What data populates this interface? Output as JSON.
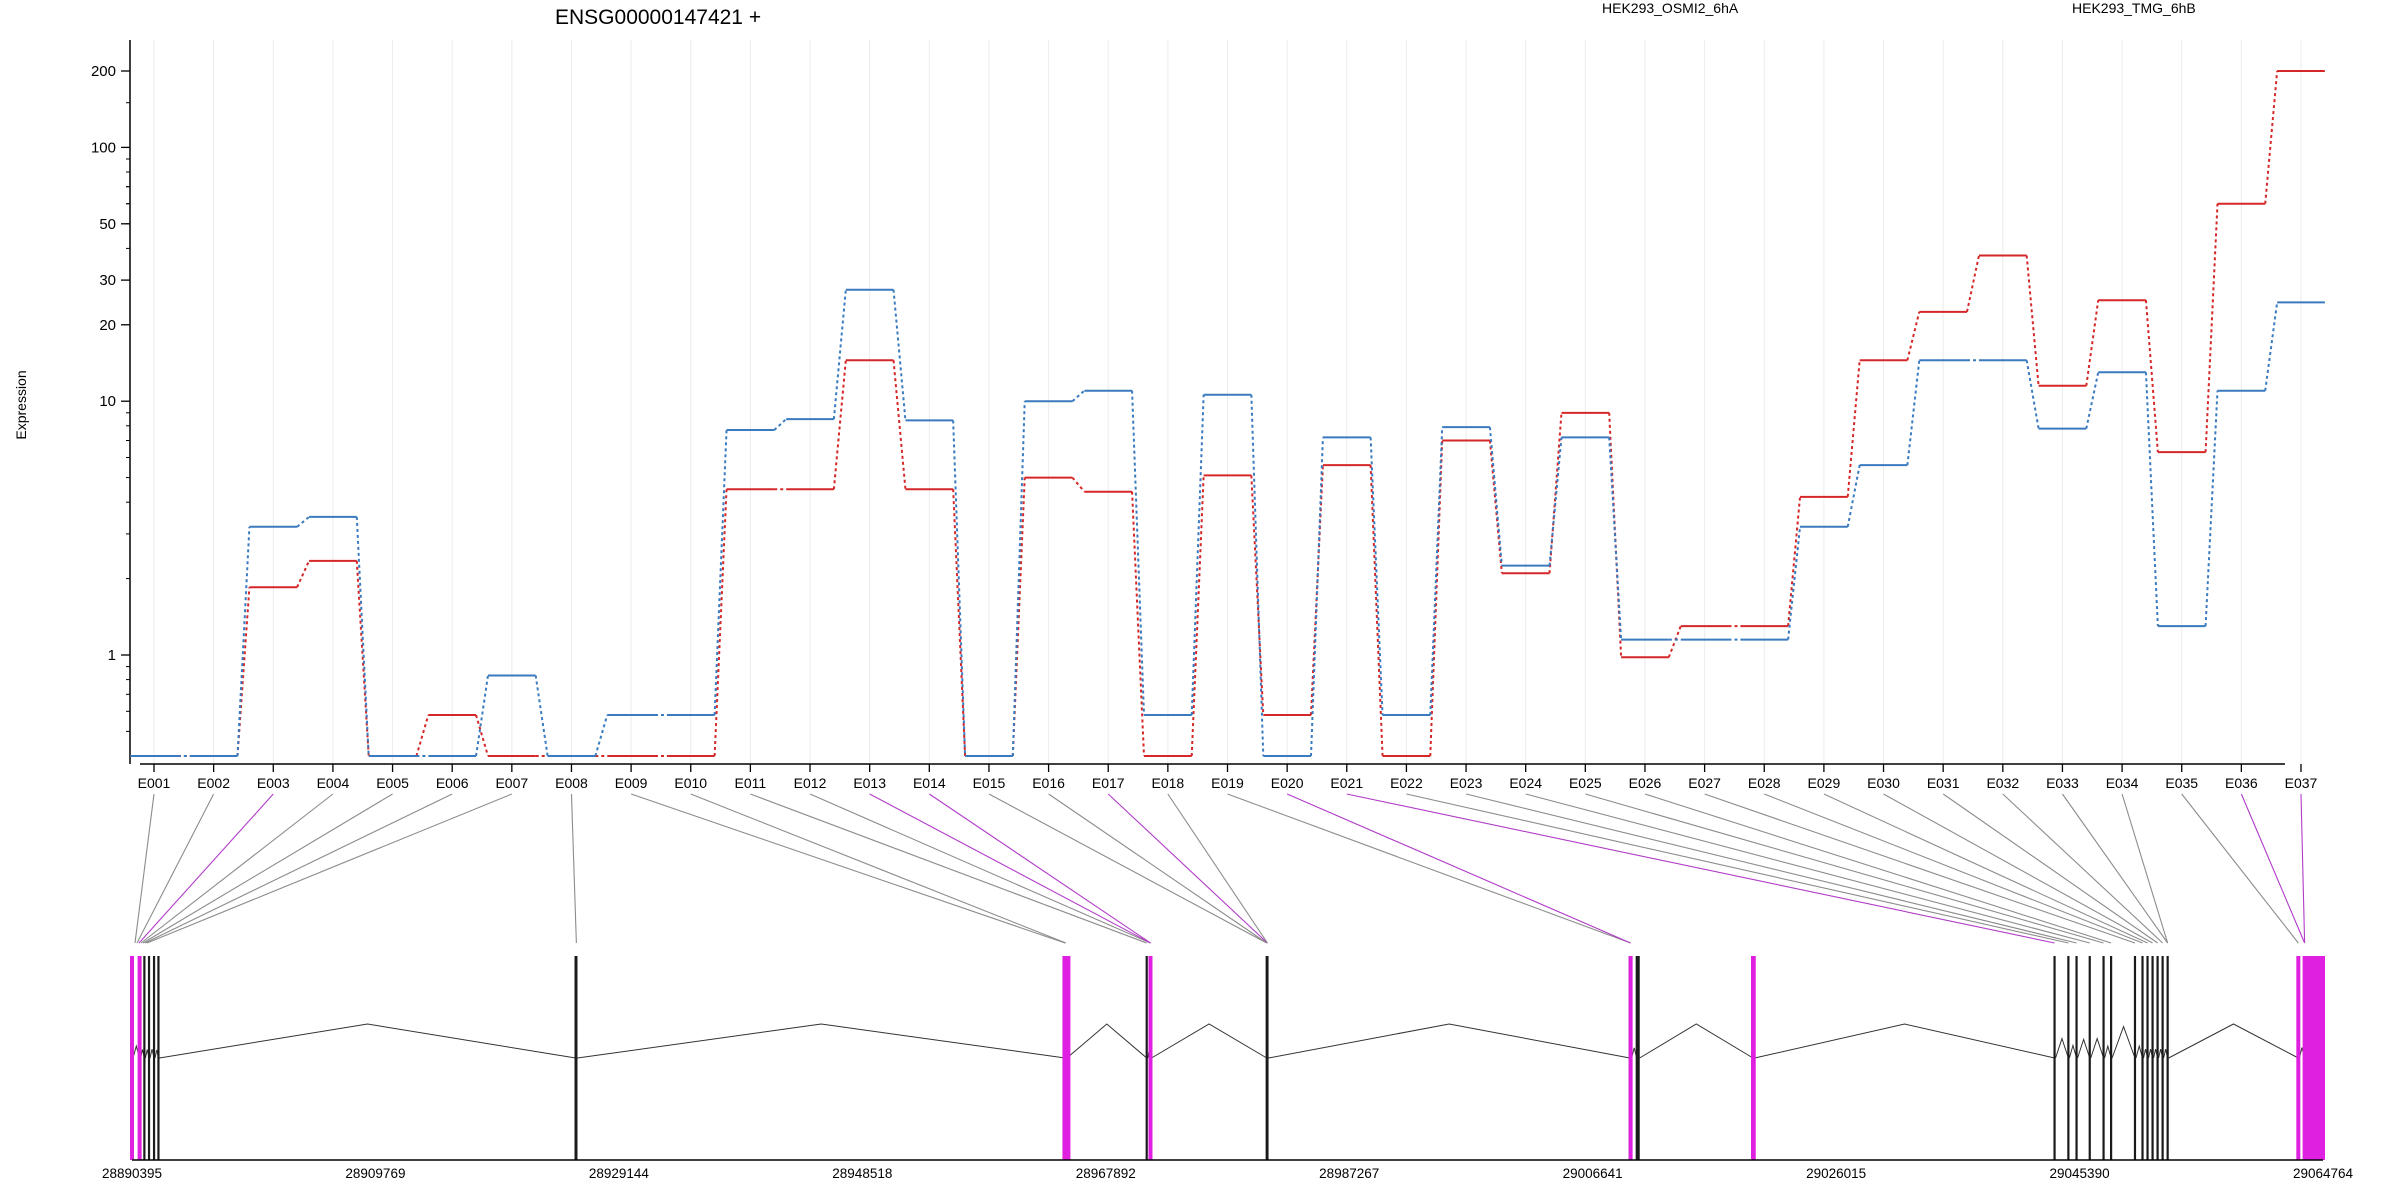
{
  "chart_data": {
    "type": "line",
    "title": "ENSG00000147421 +",
    "ylabel": "Expression",
    "yscale": "log",
    "ylim": [
      0.4,
      240
    ],
    "yticks": [
      1,
      10,
      20,
      30,
      50,
      100,
      200
    ],
    "ytick_labels": [
      "1",
      "10",
      "20",
      "30",
      "50",
      "100",
      "200"
    ],
    "categories": [
      "E001",
      "E002",
      "E003",
      "E004",
      "E005",
      "E006",
      "E007",
      "E008",
      "E009",
      "E010",
      "E011",
      "E012",
      "E013",
      "E014",
      "E015",
      "E016",
      "E017",
      "E018",
      "E019",
      "E020",
      "E021",
      "E022",
      "E023",
      "E024",
      "E025",
      "E026",
      "E027",
      "E028",
      "E029",
      "E030",
      "E031",
      "E032",
      "E033",
      "E034",
      "E035",
      "E036",
      "E037"
    ],
    "series": [
      {
        "name": "HEK293_OSMI2_6hA",
        "color": "#d62728",
        "values": [
          0.4,
          0.4,
          1.85,
          2.35,
          0.4,
          0.58,
          0.4,
          0.4,
          0.4,
          0.4,
          4.5,
          4.5,
          14.5,
          4.5,
          0.4,
          5.0,
          4.4,
          0.4,
          5.1,
          0.58,
          5.6,
          0.4,
          7.0,
          2.1,
          9.0,
          0.98,
          1.3,
          1.3,
          4.2,
          14.5,
          22.5,
          37.5,
          11.5,
          25.0,
          6.3,
          60.0,
          200.0
        ]
      },
      {
        "name": "HEK293_TMG_6hB",
        "color": "#3a7abf",
        "values": [
          0.4,
          0.4,
          3.2,
          3.5,
          0.4,
          0.4,
          0.83,
          0.4,
          0.58,
          0.58,
          7.7,
          8.5,
          27.5,
          8.4,
          0.4,
          10.0,
          11.0,
          0.58,
          10.6,
          0.4,
          7.2,
          0.58,
          7.9,
          2.25,
          7.2,
          1.15,
          1.15,
          1.15,
          3.2,
          5.6,
          14.5,
          14.5,
          7.8,
          13.0,
          1.3,
          11.0,
          24.5
        ]
      }
    ],
    "legend": "top-right",
    "grid": "x-only",
    "genomic_axis": {
      "tick_labels": [
        "28890395",
        "28909769",
        "28929144",
        "28948518",
        "28967892",
        "28987267",
        "29006641",
        "29026015",
        "29045390",
        "29064764"
      ],
      "start": 28890395,
      "end": 29064764,
      "highlight_color": "#e020e0",
      "exon_starts": [
        28890395,
        28891000,
        28891380,
        28891750,
        28892150,
        28892500,
        28925700,
        28925760,
        28964650,
        28964720,
        28971150,
        28971450,
        28980700,
        28980760,
        29009600,
        29009660,
        29010150,
        29010300,
        29019400,
        29019460,
        29043400,
        29044500,
        29045150,
        29046200,
        29047300,
        29047900,
        29049800,
        29050400,
        29050800,
        29051200,
        29051600,
        29052000,
        29052400,
        29062800,
        29063300
      ]
    }
  }
}
